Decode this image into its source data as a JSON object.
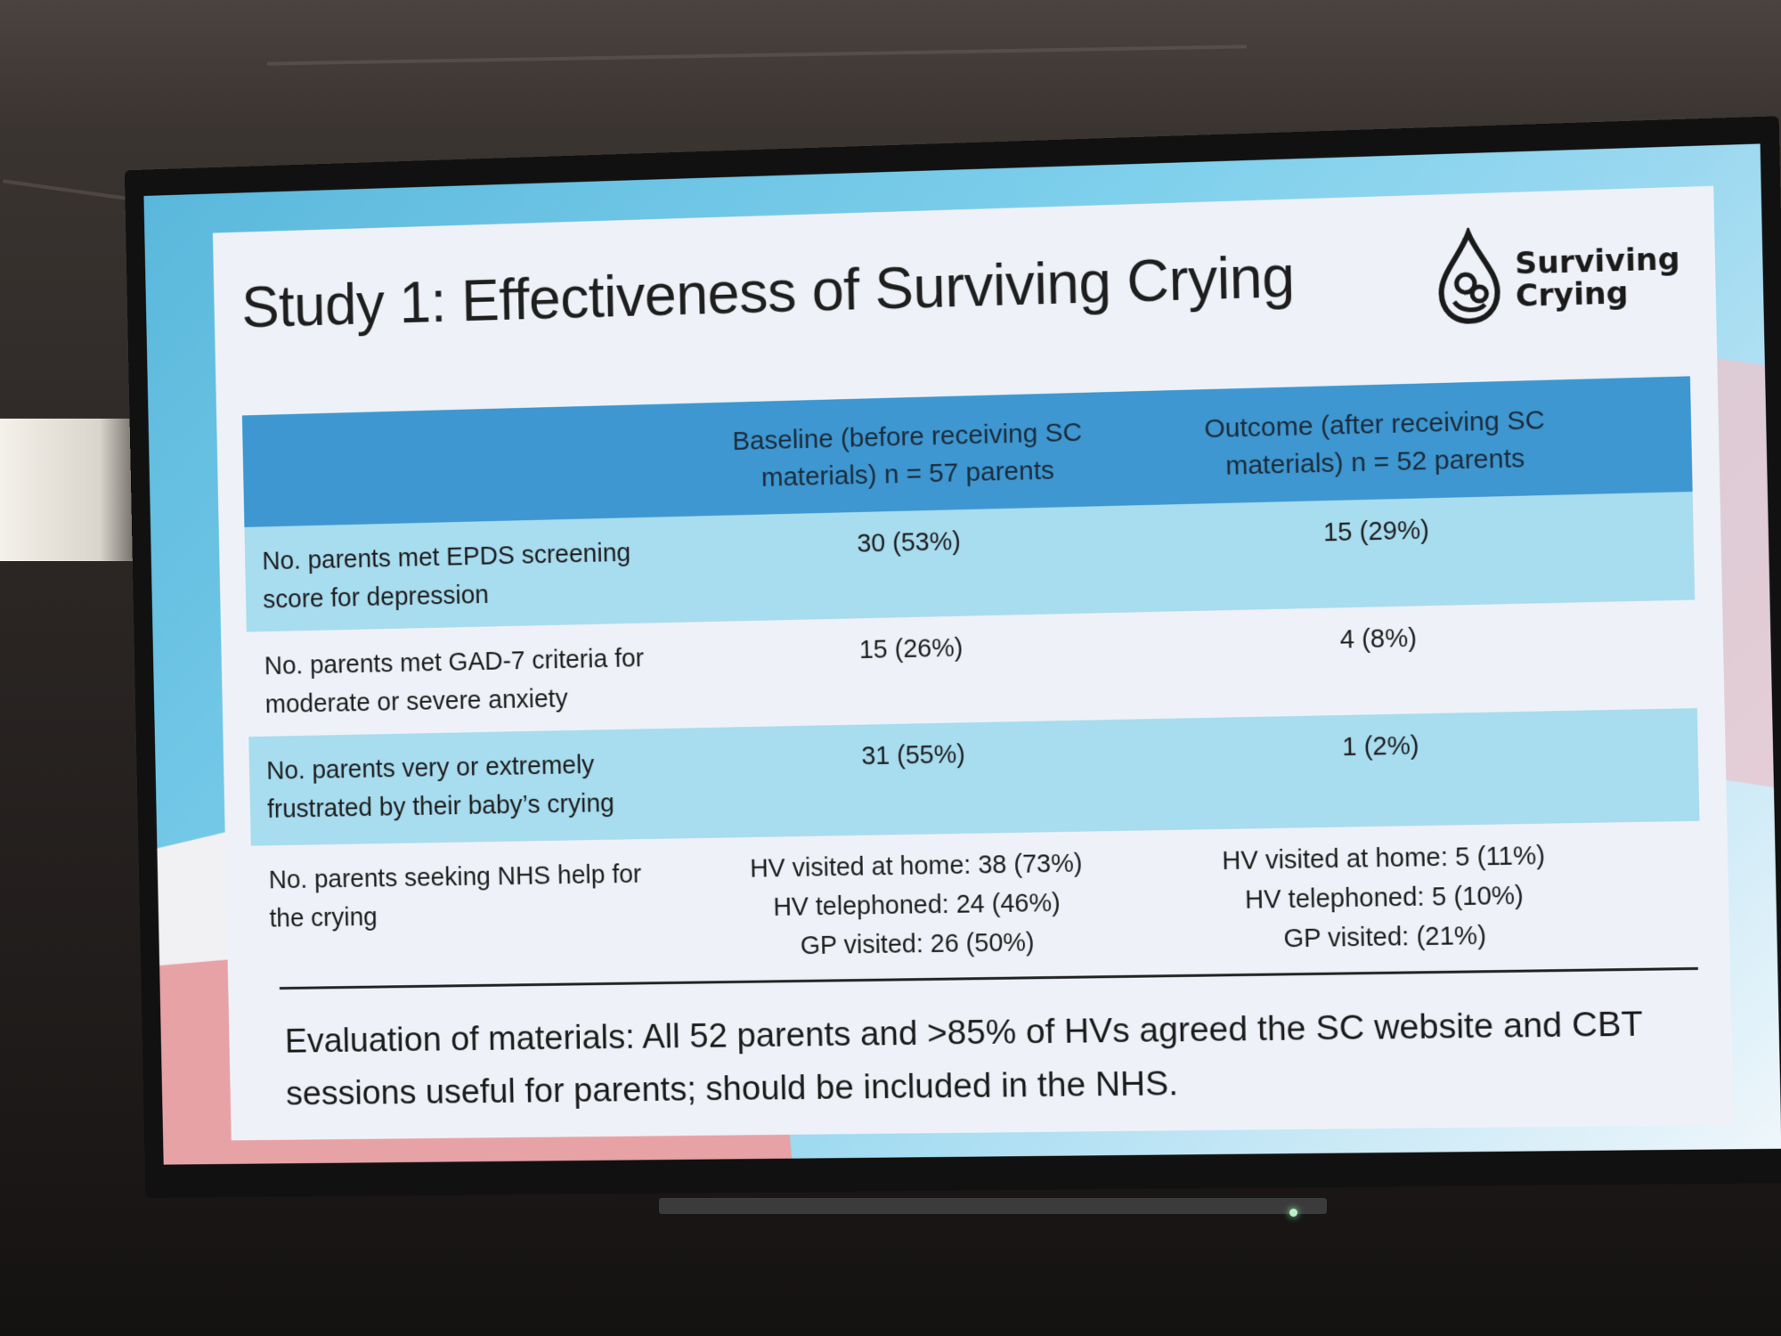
{
  "slide": {
    "title": "Study 1: Effectiveness of Surviving Crying",
    "logo": {
      "line1": "Surviving",
      "line2": "Crying"
    }
  },
  "table": {
    "headers": [
      "",
      "Baseline (before receiving SC materials) n = 57 parents",
      "Outcome (after receiving SC materials) n = 52 parents"
    ],
    "rows": [
      {
        "label": "No. parents met EPDS screening score for depression",
        "baseline": "30 (53%)",
        "outcome": "15 (29%)"
      },
      {
        "label": "No. parents met GAD-7 criteria for moderate or severe anxiety",
        "baseline": "15 (26%)",
        "outcome": "4 (8%)"
      },
      {
        "label": "No. parents very or extremely frustrated by their baby’s crying",
        "baseline": "31 (55%)",
        "outcome": "1 (2%)"
      },
      {
        "label": "No. parents seeking NHS help for the crying",
        "baseline_lines": [
          "HV visited at home: 38 (73%)",
          "HV telephoned: 24 (46%)",
          "GP visited: 26 (50%)"
        ],
        "outcome_lines": [
          "HV visited at home: 5 (11%)",
          "HV telephoned: 5 (10%)",
          "GP visited: (21%)"
        ]
      }
    ]
  },
  "footer": "Evaluation of materials: All 52 parents and >85% of HVs agreed the SC website and CBT sessions useful for parents; should be included in the NHS."
}
